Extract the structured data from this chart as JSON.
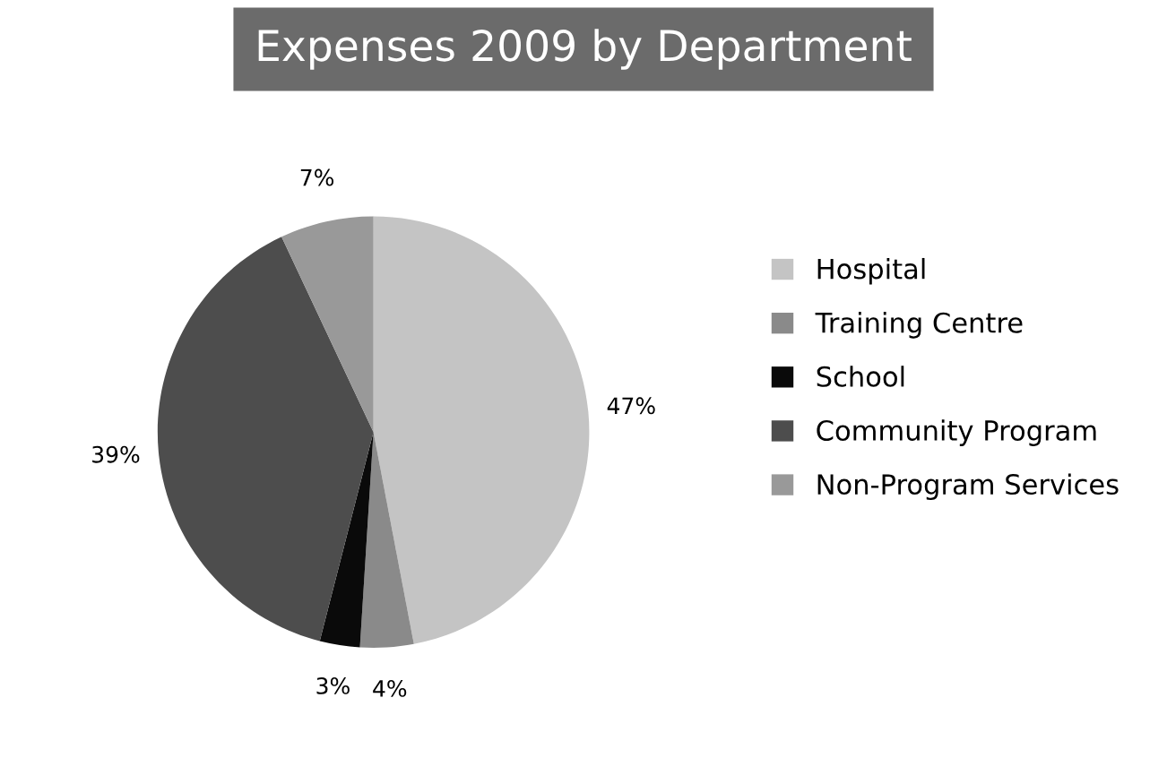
{
  "chart_data": {
    "type": "pie",
    "title": "Expenses 2009 by Department",
    "categories": [
      "Hospital",
      "Training Centre",
      "School",
      "Community Program",
      "Non-Program Services"
    ],
    "values": [
      47,
      4,
      3,
      39,
      7
    ],
    "value_labels": [
      "47%",
      "4%",
      "3%",
      "39%",
      "7%"
    ],
    "colors": [
      "#c4c4c4",
      "#8a8a8a",
      "#0a0a0a",
      "#4d4d4d",
      "#999999"
    ],
    "legend": "right"
  }
}
